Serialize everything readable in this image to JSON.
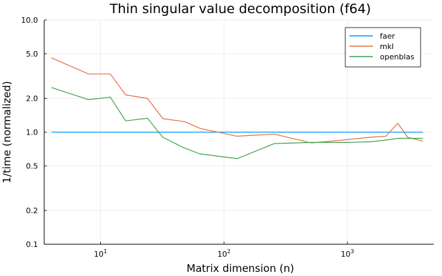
{
  "chart_data": {
    "type": "line",
    "title": "Thin singular value decomposition (f64)",
    "xlabel": "Matrix dimension (n)",
    "ylabel": "1/time (normalized)",
    "xscale": "log10",
    "yscale": "log10",
    "xlim": [
      3.5,
      5000
    ],
    "ylim": [
      0.1,
      10
    ],
    "x_ticks": [
      {
        "value": 10,
        "base": "10",
        "exp": "1"
      },
      {
        "value": 100,
        "base": "10",
        "exp": "2"
      },
      {
        "value": 1000,
        "base": "10",
        "exp": "3"
      }
    ],
    "y_ticks": [
      {
        "value": 0.1,
        "label": "0.1"
      },
      {
        "value": 0.2,
        "label": "0.2"
      },
      {
        "value": 0.5,
        "label": "0.5"
      },
      {
        "value": 1.0,
        "label": "1.0"
      },
      {
        "value": 2.0,
        "label": "2.0"
      },
      {
        "value": 5.0,
        "label": "5.0"
      },
      {
        "value": 10.0,
        "label": "10.0"
      }
    ],
    "grid": true,
    "legend_position": "top-right",
    "x": [
      4,
      8,
      12,
      16,
      24,
      32,
      48,
      64,
      128,
      256,
      512,
      1024,
      1536,
      2048,
      2560,
      3072,
      4096
    ],
    "series": [
      {
        "name": "faer",
        "color": "#009AFA",
        "values": [
          1.0,
          1.0,
          1.0,
          1.0,
          1.0,
          1.0,
          1.0,
          1.0,
          1.0,
          1.0,
          1.0,
          1.0,
          1.0,
          1.0,
          1.0,
          1.0,
          1.0
        ]
      },
      {
        "name": "mkl",
        "color": "#E26F46",
        "values": [
          4.6,
          3.3,
          3.3,
          2.15,
          2.0,
          1.32,
          1.24,
          1.08,
          0.92,
          0.96,
          0.8,
          0.86,
          0.9,
          0.92,
          1.2,
          0.9,
          0.83
        ]
      },
      {
        "name": "openblas",
        "color": "#3EA44E",
        "values": [
          2.5,
          1.95,
          2.05,
          1.26,
          1.33,
          0.9,
          0.72,
          0.64,
          0.58,
          0.79,
          0.81,
          0.81,
          0.82,
          0.85,
          0.88,
          0.88,
          0.88
        ]
      }
    ]
  }
}
